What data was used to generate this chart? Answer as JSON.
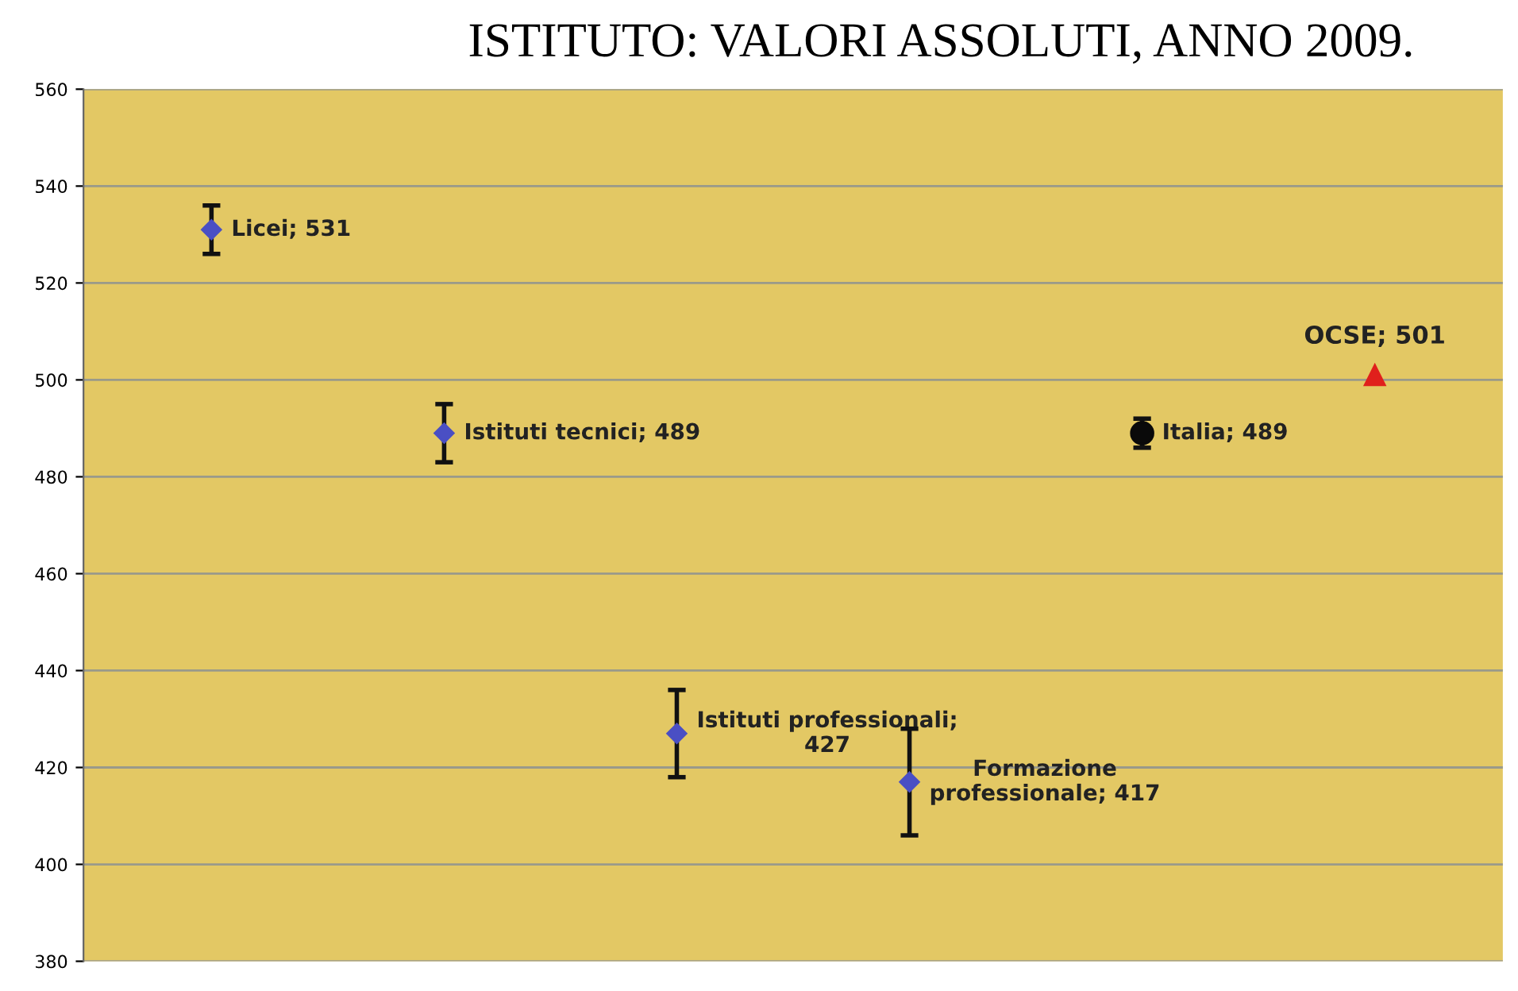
{
  "chart_data": {
    "type": "scatter",
    "title": "ISTITUTO: VALORI ASSOLUTI, ANNO 2009.",
    "categories": [
      null,
      null,
      null,
      null,
      null,
      null
    ],
    "series": [
      {
        "type": "scatter",
        "color": "#4a4fc4",
        "marker": "diamond",
        "values": [
          531,
          489,
          427,
          417,
          null,
          null
        ],
        "errors": [
          5,
          6,
          9,
          11,
          null,
          null
        ],
        "value_labels": [
          "Licei; 531",
          "Istituti tecnici; 489",
          "Istituti professionali;\n427",
          "Formazione\nprofessionale; 417",
          null,
          null
        ]
      },
      {
        "type": "scatter",
        "color": "#0a0a0a",
        "marker": "circle",
        "values": [
          null,
          null,
          null,
          null,
          489,
          null
        ],
        "errors": [
          null,
          null,
          null,
          null,
          3,
          null
        ],
        "value_labels": [
          null,
          null,
          null,
          null,
          "Italia; 489",
          null
        ]
      },
      {
        "type": "scatter",
        "color": "#e0201c",
        "marker": "triangle",
        "values": [
          null,
          null,
          null,
          null,
          null,
          501
        ],
        "value_labels": [
          null,
          null,
          null,
          null,
          null,
          "OCSE; 501"
        ]
      }
    ],
    "ylim": [
      380,
      560
    ],
    "yticks": [
      380,
      400,
      420,
      440,
      460,
      480,
      500,
      520,
      540,
      560
    ],
    "grid": "y",
    "tick_labels": "y",
    "legend": false
  }
}
